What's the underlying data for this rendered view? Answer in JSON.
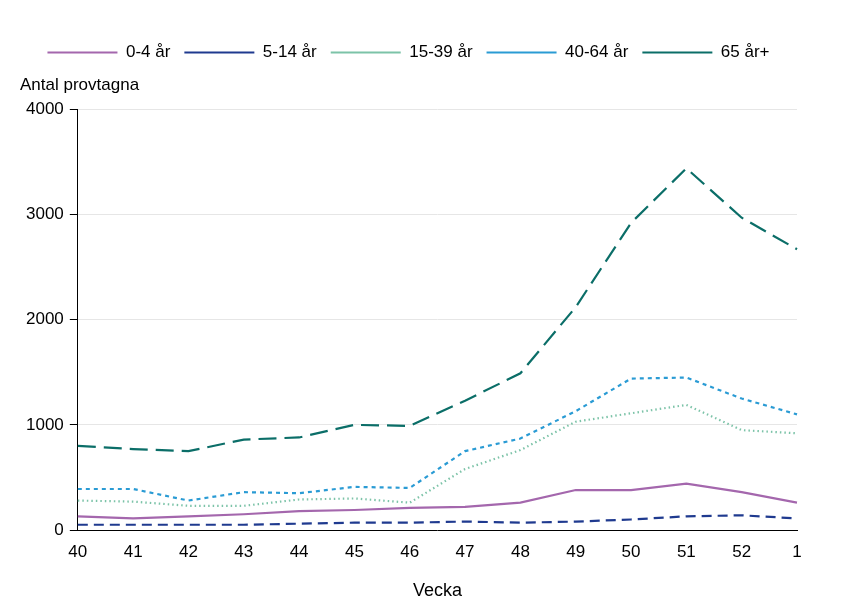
{
  "chart_data": {
    "type": "line",
    "ylabel": "Antal provtagna",
    "xlabel": "Vecka",
    "categories": [
      "40",
      "41",
      "42",
      "43",
      "44",
      "45",
      "46",
      "47",
      "48",
      "49",
      "50",
      "51",
      "52",
      "1"
    ],
    "series": [
      {
        "name": "0-4 år",
        "color": "#a467ad",
        "line_style": "solid",
        "values": [
          130,
          110,
          130,
          150,
          180,
          190,
          210,
          220,
          260,
          380,
          380,
          440,
          360,
          260
        ]
      },
      {
        "name": "5-14 år",
        "color": "#1f3a8f",
        "line_style": "dashed",
        "values": [
          50,
          50,
          50,
          50,
          60,
          70,
          70,
          80,
          70,
          80,
          100,
          130,
          140,
          110
        ]
      },
      {
        "name": "15-39 år",
        "color": "#7cc3a8",
        "line_style": "dotted",
        "values": [
          280,
          270,
          230,
          230,
          290,
          300,
          260,
          580,
          760,
          1030,
          1110,
          1190,
          950,
          920
        ]
      },
      {
        "name": "40-64 år",
        "color": "#2a9bd4",
        "line_style": "short_dashed",
        "values": [
          390,
          390,
          280,
          360,
          350,
          410,
          400,
          750,
          870,
          1130,
          1440,
          1450,
          1250,
          1100
        ]
      },
      {
        "name": "65 år+",
        "color": "#0b6e68",
        "line_style": "long_dashed",
        "values": [
          800,
          770,
          750,
          860,
          880,
          1000,
          990,
          1230,
          1490,
          2120,
          2920,
          3440,
          2970,
          2670
        ]
      }
    ],
    "ylim": [
      0,
      4000
    ],
    "yticks": [
      0,
      1000,
      2000,
      3000,
      4000
    ],
    "grid": "y",
    "legend": "top"
  }
}
